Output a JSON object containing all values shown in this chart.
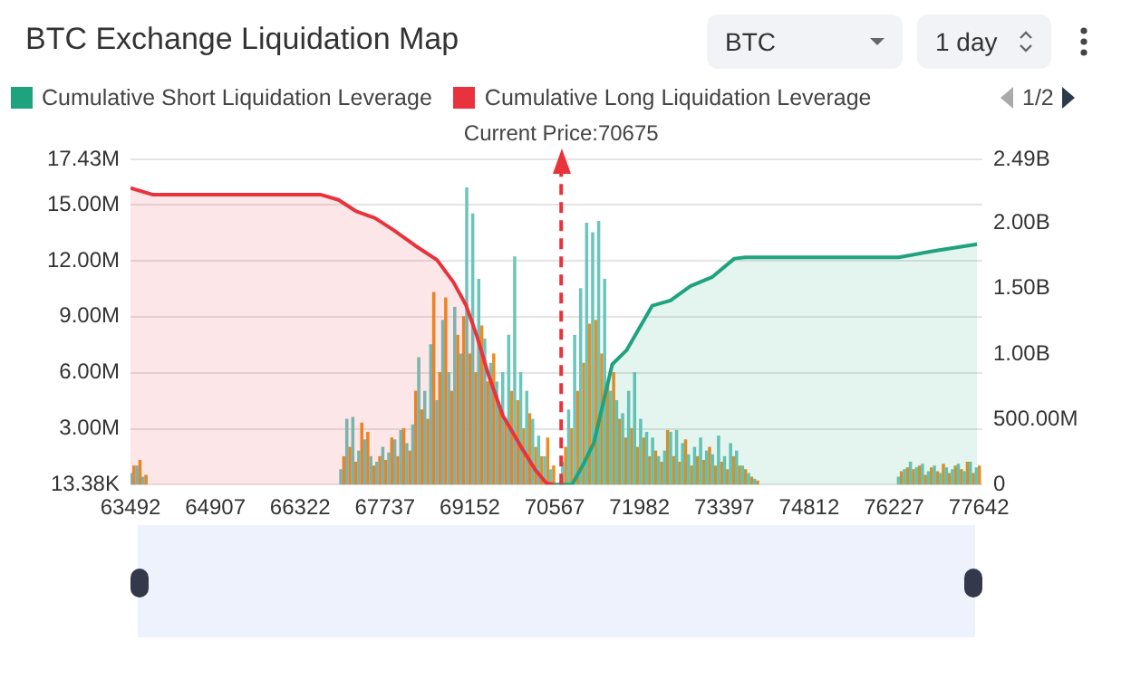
{
  "chart_data": {
    "type": "area",
    "title": "BTC Exchange Liquidation Map",
    "annotations": [
      "BTC",
      "1 day",
      "1/2"
    ],
    "legend": "top",
    "grid": "y",
    "marker": "none",
    "line_style": "solid",
    "xlim": [
      63492,
      77700
    ],
    "xticks": [
      63492,
      64907,
      66322,
      67737,
      69152,
      70567,
      71982,
      73397,
      74812,
      76227,
      77642
    ],
    "ylim": [
      13380,
      17430000
    ],
    "yticks": [
      {
        "value": 13380,
        "label": "13.38K"
      },
      {
        "value": 3000000,
        "label": "3.00M"
      },
      {
        "value": 6000000,
        "label": "6.00M"
      },
      {
        "value": 9000000,
        "label": "9.00M"
      },
      {
        "value": 12000000,
        "label": "12.00M"
      },
      {
        "value": 15000000,
        "label": "15.00M"
      },
      {
        "value": 17430000,
        "label": "17.43M"
      }
    ],
    "y2lim": [
      0,
      2490000000
    ],
    "y2ticks": [
      0,
      {
        "value": 500000000,
        "label": "500.00M"
      },
      {
        "value": 1000000000,
        "label": "1.00B"
      },
      {
        "value": 1500000000,
        "label": "1.50B"
      },
      {
        "value": 2000000000,
        "label": "2.00B"
      },
      {
        "value": 2490000000,
        "label": "2.49B"
      }
    ],
    "ref_lines": [
      {
        "axis": "x",
        "value": 70675,
        "label": "Current Price:70675",
        "color": "#e8333c",
        "line_style": "dashed"
      }
    ],
    "series": [
      {
        "name": "Cumulative Short Liquidation Leverage",
        "axis": "y2",
        "color": "#1fa37e",
        "x": [
          70552,
          70856,
          71039,
          71221,
          71526,
          71769,
          72195,
          72499,
          72834,
          73199,
          73564,
          73747,
          76303,
          76911,
          77611
        ],
        "values": [
          0,
          0,
          150000000,
          320000000,
          920000000,
          1030000000,
          1370000000,
          1410000000,
          1520000000,
          1590000000,
          1730000000,
          1740000000,
          1740000000,
          1790000000,
          1840000000
        ]
      },
      {
        "name": "Cumulative Long Liquidation Leverage",
        "axis": "y2",
        "color": "#e8333c",
        "x": [
          63492,
          63857,
          66657,
          66961,
          67265,
          67570,
          67874,
          68239,
          68604,
          68878,
          69091,
          69274,
          69456,
          69700,
          70004,
          70247,
          70430,
          70552
        ],
        "values": [
          2270000000,
          2220000000,
          2220000000,
          2180000000,
          2090000000,
          2040000000,
          1950000000,
          1830000000,
          1720000000,
          1550000000,
          1370000000,
          1130000000,
          850000000,
          530000000,
          290000000,
          110000000,
          10000000,
          0
        ]
      },
      {
        "type": "bar",
        "color": "#6cc5bb",
        "x": [
          63500,
          63600,
          63700,
          67000,
          67100,
          67200,
          67300,
          67400,
          67500,
          67600,
          67700,
          67800,
          67900,
          68000,
          68100,
          68200,
          68300,
          68400,
          68500,
          68600,
          68700,
          68800,
          68900,
          69000,
          69100,
          69200,
          69300,
          69400,
          69500,
          69600,
          69700,
          69800,
          69900,
          70000,
          70100,
          70200,
          70300,
          70400,
          70500,
          70700,
          70800,
          70900,
          71000,
          71100,
          71200,
          71300,
          71400,
          71500,
          71600,
          71700,
          71800,
          71900,
          72000,
          72100,
          72200,
          72300,
          72400,
          72500,
          72600,
          72700,
          72800,
          72900,
          73000,
          73100,
          73200,
          73300,
          73400,
          73500,
          73600,
          73700,
          73800,
          73900,
          76300,
          76400,
          76500,
          76600,
          76700,
          76800,
          76900,
          77000,
          77100,
          77200,
          77300,
          77400,
          77500,
          77600
        ],
        "values": [
          600000,
          1000000,
          400000,
          800000,
          3500000,
          3600000,
          1800000,
          2400000,
          1500000,
          1200000,
          2000000,
          1700000,
          2400000,
          2900000,
          2200000,
          3200000,
          6800000,
          5000000,
          7500000,
          4500000,
          8800000,
          6000000,
          9500000,
          7000000,
          15900000,
          14500000,
          11000000,
          7800000,
          6500000,
          5500000,
          6000000,
          8000000,
          12200000,
          6000000,
          5000000,
          3500000,
          2600000,
          1500000,
          800000,
          1200000,
          4000000,
          8000000,
          10500000,
          14000000,
          13500000,
          14100000,
          11000000,
          5000000,
          4500000,
          3800000,
          5000000,
          6000000,
          3500000,
          2800000,
          2500000,
          1500000,
          1800000,
          2800000,
          2900000,
          2200000,
          1600000,
          2000000,
          2500000,
          1800000,
          1600000,
          2600000,
          1500000,
          2200000,
          1800000,
          1000000,
          600000,
          300000,
          400000,
          800000,
          1200000,
          900000,
          1100000,
          700000,
          1000000,
          600000,
          900000,
          800000,
          1100000,
          700000,
          1200000,
          900000
        ]
      },
      {
        "type": "bar",
        "color": "#f08c1e",
        "x": [
          63550,
          63650,
          63750,
          67050,
          67150,
          67250,
          67350,
          67450,
          67550,
          67650,
          67750,
          67850,
          67950,
          68050,
          68150,
          68250,
          68350,
          68450,
          68550,
          68650,
          68750,
          68850,
          68950,
          69050,
          69150,
          69250,
          69350,
          69450,
          69550,
          69650,
          69750,
          69850,
          69950,
          70050,
          70150,
          70250,
          70350,
          70450,
          70550,
          70750,
          70850,
          70950,
          71050,
          71150,
          71250,
          71350,
          71450,
          71550,
          71650,
          71750,
          71850,
          71950,
          72050,
          72150,
          72250,
          72350,
          72450,
          72550,
          72650,
          72750,
          72850,
          72950,
          73050,
          73150,
          73250,
          73350,
          73450,
          73550,
          73650,
          73750,
          73850,
          73950,
          76350,
          76450,
          76550,
          76650,
          76750,
          76850,
          76950,
          77050,
          77150,
          77250,
          77350,
          77450,
          77550,
          77650
        ],
        "values": [
          1000000,
          1300000,
          500000,
          1500000,
          2000000,
          1200000,
          3300000,
          2800000,
          1000000,
          1500000,
          1300000,
          2500000,
          1500000,
          3000000,
          1800000,
          5000000,
          4000000,
          3500000,
          10300000,
          6000000,
          10000000,
          5000000,
          8000000,
          9000000,
          7000000,
          6000000,
          8500000,
          5500000,
          7000000,
          4000000,
          3500000,
          5000000,
          4500000,
          3000000,
          3800000,
          2000000,
          1500000,
          2500000,
          1000000,
          2000000,
          3000000,
          5000000,
          6500000,
          8600000,
          8800000,
          7000000,
          5500000,
          6000000,
          3500000,
          2500000,
          3000000,
          2000000,
          2500000,
          1500000,
          1800000,
          1200000,
          2900000,
          1500000,
          1200000,
          2400000,
          1000000,
          1500000,
          1300000,
          2000000,
          1000000,
          1200000,
          800000,
          1500000,
          1000000,
          800000,
          400000,
          200000,
          700000,
          900000,
          800000,
          1000000,
          500000,
          900000,
          700000,
          1100000,
          600000,
          1000000,
          800000,
          1200000,
          600000,
          1000000
        ]
      }
    ]
  }
}
